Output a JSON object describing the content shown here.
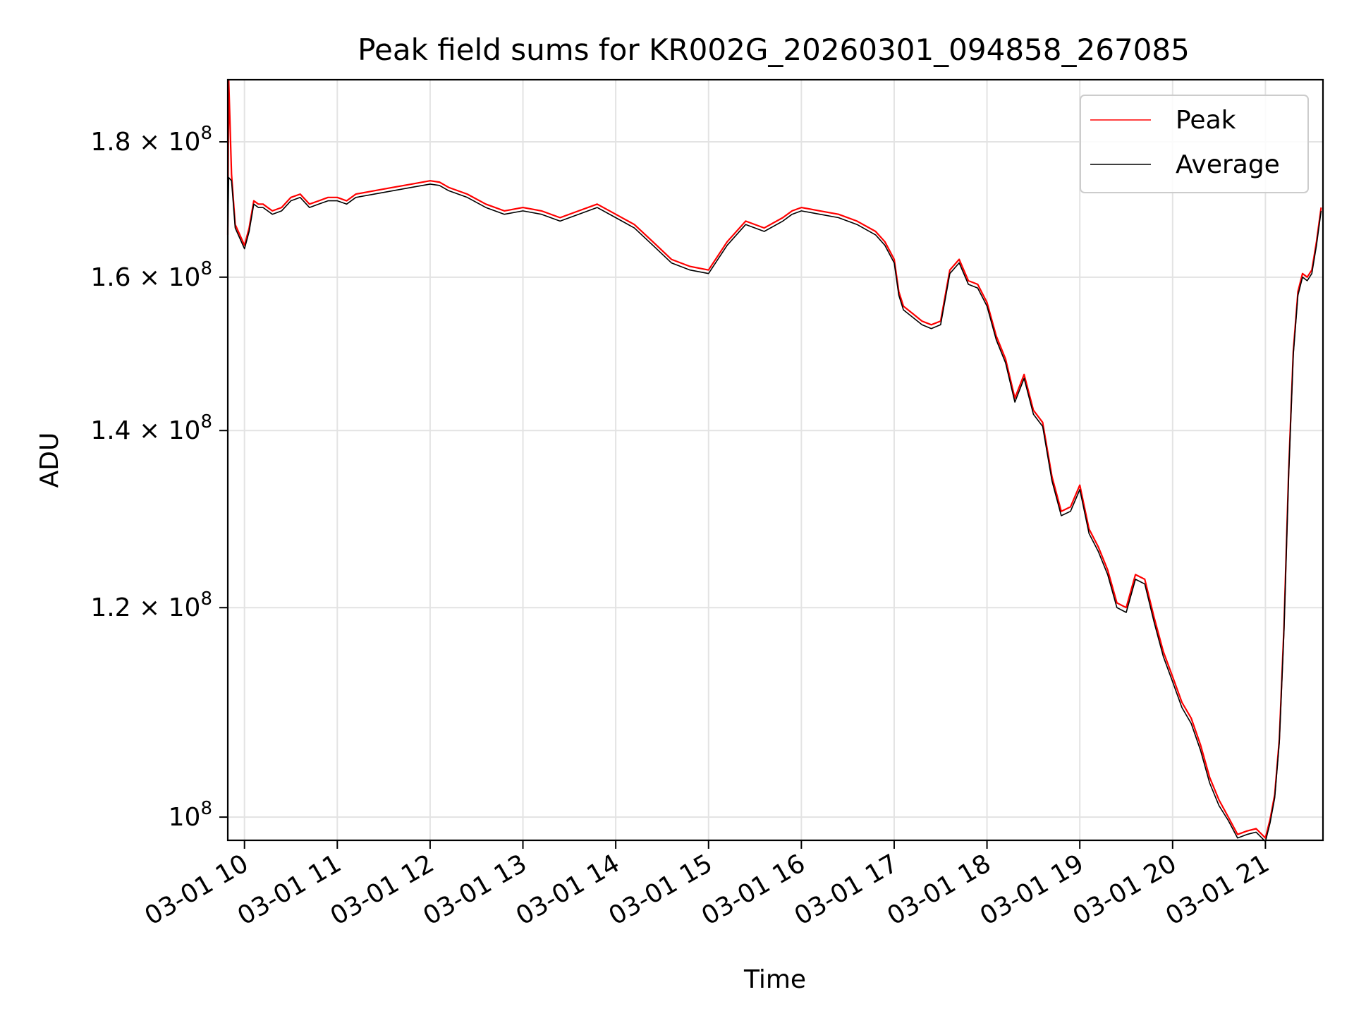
{
  "chart_data": {
    "type": "line",
    "title": "Peak field sums for KR002G_20260301_094858_267085",
    "xlabel": "Time",
    "ylabel": "ADU",
    "x_unit": "time of day (hours), 2026-03-01",
    "xlim": [
      9.82,
      21.62
    ],
    "ylim": [
      98000000,
      190000000
    ],
    "yscale": "log",
    "grid": true,
    "legend_position": "upper right",
    "x_ticks": [
      {
        "value": 10,
        "label": "03-01 10"
      },
      {
        "value": 11,
        "label": "03-01 11"
      },
      {
        "value": 12,
        "label": "03-01 12"
      },
      {
        "value": 13,
        "label": "03-01 13"
      },
      {
        "value": 14,
        "label": "03-01 14"
      },
      {
        "value": 15,
        "label": "03-01 15"
      },
      {
        "value": 16,
        "label": "03-01 16"
      },
      {
        "value": 17,
        "label": "03-01 17"
      },
      {
        "value": 18,
        "label": "03-01 18"
      },
      {
        "value": 19,
        "label": "03-01 19"
      },
      {
        "value": 20,
        "label": "03-01 20"
      },
      {
        "value": 21,
        "label": "03-01 21"
      }
    ],
    "y_ticks": [
      {
        "value": 100000000,
        "mantissa": "",
        "exponent": "8"
      },
      {
        "value": 120000000,
        "mantissa": "1.2",
        "exponent": "8"
      },
      {
        "value": 140000000,
        "mantissa": "1.4",
        "exponent": "8"
      },
      {
        "value": 160000000,
        "mantissa": "1.6",
        "exponent": "8"
      },
      {
        "value": 180000000,
        "mantissa": "1.8",
        "exponent": "8"
      }
    ],
    "series": [
      {
        "name": "Peak",
        "color": "#ff0000",
        "x": [
          9.82,
          9.83,
          9.86,
          9.9,
          9.95,
          10.0,
          10.05,
          10.1,
          10.15,
          10.2,
          10.3,
          10.4,
          10.5,
          10.6,
          10.7,
          10.8,
          10.9,
          11.0,
          11.1,
          11.2,
          11.4,
          11.6,
          11.8,
          12.0,
          12.1,
          12.2,
          12.4,
          12.6,
          12.8,
          13.0,
          13.2,
          13.4,
          13.6,
          13.8,
          14.0,
          14.2,
          14.4,
          14.6,
          14.8,
          15.0,
          15.2,
          15.4,
          15.6,
          15.8,
          15.9,
          16.0,
          16.2,
          16.4,
          16.6,
          16.8,
          16.9,
          17.0,
          17.05,
          17.1,
          17.2,
          17.3,
          17.4,
          17.5,
          17.6,
          17.7,
          17.8,
          17.9,
          18.0,
          18.1,
          18.2,
          18.3,
          18.4,
          18.5,
          18.6,
          18.7,
          18.8,
          18.9,
          19.0,
          19.1,
          19.2,
          19.3,
          19.4,
          19.5,
          19.6,
          19.7,
          19.8,
          19.9,
          20.0,
          20.1,
          20.2,
          20.3,
          20.4,
          20.5,
          20.6,
          20.7,
          20.8,
          20.9,
          21.0,
          21.05,
          21.1,
          21.15,
          21.2,
          21.25,
          21.3,
          21.35,
          21.4,
          21.45,
          21.5,
          21.55,
          21.6
        ],
        "values": [
          166000000,
          190000000,
          175000000,
          167500000,
          166000000,
          164500000,
          167000000,
          171000000,
          170500000,
          170500000,
          169500000,
          170000000,
          171500000,
          172000000,
          170500000,
          171000000,
          171500000,
          171500000,
          171000000,
          172000000,
          172500000,
          173000000,
          173500000,
          174000000,
          173800000,
          173000000,
          172000000,
          170500000,
          169500000,
          170000000,
          169500000,
          168500000,
          169500000,
          170500000,
          169000000,
          167500000,
          165000000,
          162500000,
          161500000,
          161000000,
          165000000,
          168000000,
          167000000,
          168500000,
          169500000,
          170000000,
          169500000,
          169000000,
          168000000,
          166500000,
          165000000,
          162500000,
          158000000,
          156000000,
          155000000,
          154000000,
          153500000,
          154000000,
          161000000,
          162500000,
          159500000,
          159000000,
          156500000,
          152000000,
          149000000,
          144000000,
          147000000,
          142500000,
          141000000,
          134500000,
          130500000,
          131000000,
          133500000,
          128500000,
          126500000,
          124000000,
          120500000,
          120000000,
          123500000,
          123000000,
          119000000,
          115500000,
          113000000,
          110500000,
          109000000,
          106500000,
          103500000,
          101500000,
          100000000,
          98500000,
          98800000,
          99000000,
          98200000,
          99800000,
          102000000,
          107000000,
          118000000,
          135000000,
          150000000,
          158000000,
          160500000,
          160000000,
          161000000,
          165000000,
          170000000
        ]
      },
      {
        "name": "Average",
        "color": "#000000",
        "x": [
          9.82,
          9.83,
          9.86,
          9.9,
          9.95,
          10.0,
          10.05,
          10.1,
          10.15,
          10.2,
          10.3,
          10.4,
          10.5,
          10.6,
          10.7,
          10.8,
          10.9,
          11.0,
          11.1,
          11.2,
          11.4,
          11.6,
          11.8,
          12.0,
          12.1,
          12.2,
          12.4,
          12.6,
          12.8,
          13.0,
          13.2,
          13.4,
          13.6,
          13.8,
          14.0,
          14.2,
          14.4,
          14.6,
          14.8,
          15.0,
          15.2,
          15.4,
          15.6,
          15.8,
          15.9,
          16.0,
          16.2,
          16.4,
          16.6,
          16.8,
          16.9,
          17.0,
          17.05,
          17.1,
          17.2,
          17.3,
          17.4,
          17.5,
          17.6,
          17.7,
          17.8,
          17.9,
          18.0,
          18.1,
          18.2,
          18.3,
          18.4,
          18.5,
          18.6,
          18.7,
          18.8,
          18.9,
          19.0,
          19.1,
          19.2,
          19.3,
          19.4,
          19.5,
          19.6,
          19.7,
          19.8,
          19.9,
          20.0,
          20.1,
          20.2,
          20.3,
          20.4,
          20.5,
          20.6,
          20.7,
          20.8,
          20.9,
          21.0,
          21.05,
          21.1,
          21.15,
          21.2,
          21.25,
          21.3,
          21.35,
          21.4,
          21.45,
          21.5,
          21.55,
          21.6
        ],
        "values": [
          165500000,
          174500000,
          174000000,
          167000000,
          165500000,
          164000000,
          166500000,
          170500000,
          170000000,
          170000000,
          169000000,
          169500000,
          171000000,
          171500000,
          170000000,
          170500000,
          171000000,
          171000000,
          170500000,
          171500000,
          172000000,
          172500000,
          173000000,
          173500000,
          173300000,
          172500000,
          171500000,
          170000000,
          169000000,
          169500000,
          169000000,
          168000000,
          169000000,
          170000000,
          168500000,
          167000000,
          164500000,
          162000000,
          161000000,
          160500000,
          164500000,
          167500000,
          166500000,
          168000000,
          169000000,
          169500000,
          169000000,
          168500000,
          167500000,
          166000000,
          164500000,
          162000000,
          157500000,
          155500000,
          154500000,
          153500000,
          153000000,
          153500000,
          160500000,
          162000000,
          159000000,
          158500000,
          156000000,
          151500000,
          148500000,
          143500000,
          146500000,
          142000000,
          140500000,
          134000000,
          130000000,
          130500000,
          133000000,
          128000000,
          126000000,
          123500000,
          120000000,
          119500000,
          123000000,
          122500000,
          118500000,
          115000000,
          112500000,
          110000000,
          108500000,
          106000000,
          103000000,
          101000000,
          99700000,
          98200000,
          98500000,
          98700000,
          97900000,
          99500000,
          101700000,
          106700000,
          117500000,
          134500000,
          149500000,
          157500000,
          160000000,
          159500000,
          160500000,
          164500000,
          169500000
        ]
      }
    ]
  }
}
